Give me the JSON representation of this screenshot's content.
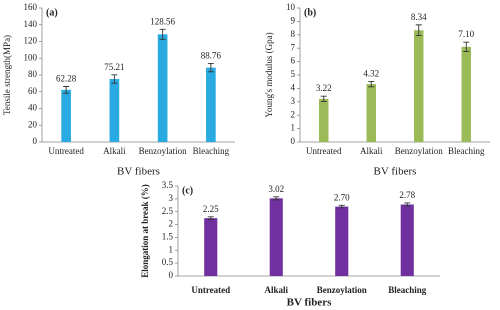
{
  "chart_data": [
    {
      "type": "bar",
      "label": "(a)",
      "xlabel": "BV fibers",
      "ylabel": "Tensile strength(MPa)",
      "categories": [
        "Untreated",
        "Alkali",
        "Benzoylation",
        "Bleaching"
      ],
      "values": [
        62.28,
        75.21,
        128.56,
        88.76
      ],
      "errors": [
        4,
        5,
        6,
        5
      ],
      "color": "#29abe2",
      "ylim": [
        0,
        160
      ],
      "yticks": [
        0,
        20,
        40,
        60,
        80,
        100,
        120,
        140,
        160
      ]
    },
    {
      "type": "bar",
      "label": "(b)",
      "xlabel": "BV fibers",
      "ylabel": "Young's modulus (Gpa)",
      "categories": [
        "Untreated",
        "Alkali",
        "Benzoylation",
        "Bleaching"
      ],
      "values": [
        3.22,
        4.32,
        8.34,
        7.1
      ],
      "value_labels": [
        "3.22",
        "4.32",
        "8.34",
        "7.10"
      ],
      "errors": [
        0.2,
        0.2,
        0.4,
        0.35
      ],
      "color": "#9bbb59",
      "ylim": [
        0,
        10
      ],
      "yticks": [
        0,
        1,
        2,
        3,
        4,
        5,
        6,
        7,
        8,
        9,
        10
      ]
    },
    {
      "type": "bar",
      "label": "(c)",
      "xlabel": "BV fibers",
      "ylabel": "Elongation at break (%)",
      "categories": [
        "Untreated",
        "Alkali",
        "Benzoylation",
        "Bleaching"
      ],
      "values": [
        2.25,
        3.02,
        2.7,
        2.78
      ],
      "value_labels": [
        "2.25",
        "3.02",
        "2.70",
        "2.78"
      ],
      "errors": [
        0.05,
        0.06,
        0.05,
        0.06
      ],
      "color": "#7030a0",
      "ylim": [
        0,
        3.5
      ],
      "yticks": [
        0,
        0.5,
        1,
        1.5,
        2,
        2.5,
        3,
        3.5
      ]
    }
  ]
}
